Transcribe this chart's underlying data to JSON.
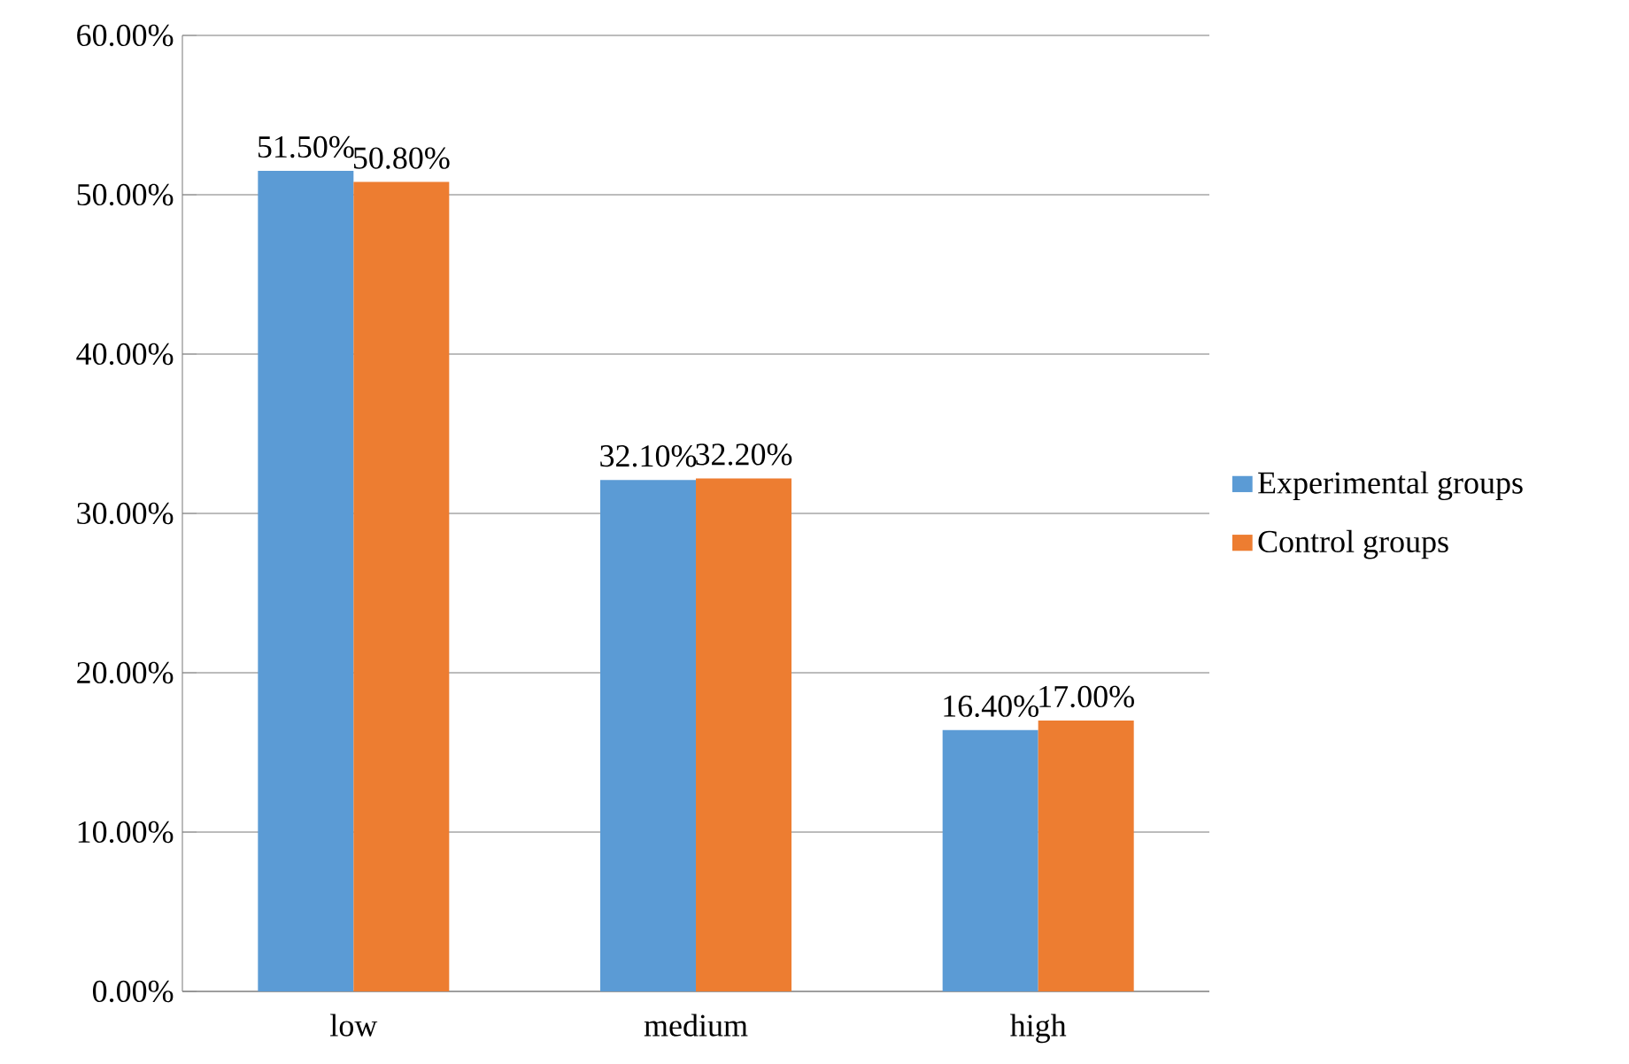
{
  "chart_data": {
    "type": "bar",
    "categories": [
      "low",
      "medium",
      "high"
    ],
    "series": [
      {
        "name": "Experimental groups",
        "color": "#5b9bd5",
        "values": [
          51.5,
          32.1,
          16.4
        ],
        "value_labels": [
          "51.50%",
          "32.10%",
          "16.40%"
        ]
      },
      {
        "name": "Control groups",
        "color": "#ed7d31",
        "values": [
          50.8,
          32.2,
          17.0
        ],
        "value_labels": [
          "50.80%",
          "32.20%",
          "17.00%"
        ]
      }
    ],
    "ylim": [
      0,
      60
    ],
    "yticks": [
      {
        "value": 0,
        "label": "0.00%"
      },
      {
        "value": 10,
        "label": "10.00%"
      },
      {
        "value": 20,
        "label": "20.00%"
      },
      {
        "value": 30,
        "label": "30.00%"
      },
      {
        "value": 40,
        "label": "40.00%"
      },
      {
        "value": 50,
        "label": "50.00%"
      },
      {
        "value": 60,
        "label": "60.00%"
      }
    ],
    "grid": "y",
    "legend": "right"
  }
}
